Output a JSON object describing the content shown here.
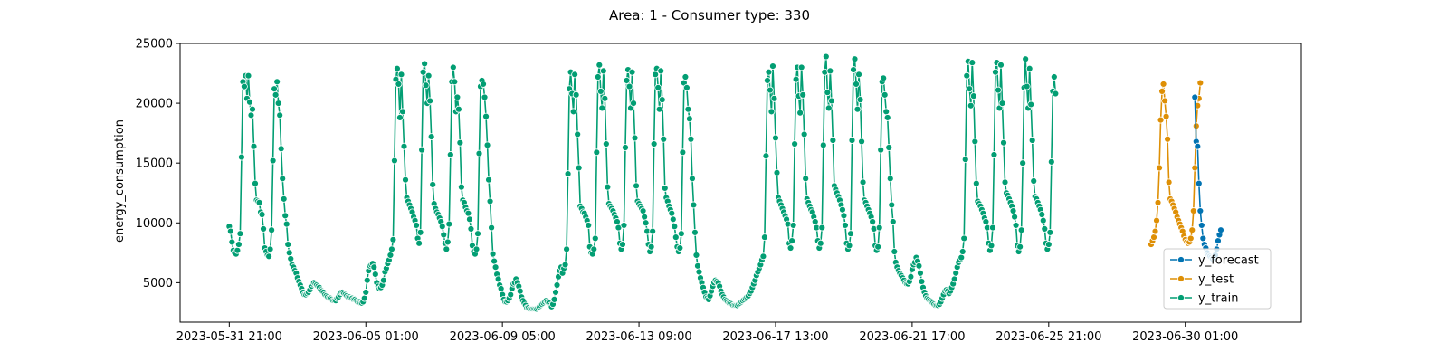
{
  "chart_data": {
    "type": "line",
    "title": "Area: 1 - Consumer type: 330",
    "xlabel": "",
    "ylabel": "energy_consumption",
    "x_unit": "hour",
    "x_ticks": [
      "2023-05-31 21:00",
      "2023-06-05 01:00",
      "2023-06-09 05:00",
      "2023-06-13 09:00",
      "2023-06-17 13:00",
      "2023-06-21 17:00",
      "2023-06-25 21:00",
      "2023-06-30 01:00"
    ],
    "x_range": [
      "2023-05-30 09:00",
      "2023-07-03 14:00"
    ],
    "y_ticks": [
      5000,
      10000,
      15000,
      20000,
      25000
    ],
    "ylim": [
      1700,
      25000
    ],
    "grid": false,
    "legend_position": "lower-right",
    "daily_peaks": [
      22300,
      21800,
      5000,
      4200,
      6600,
      22900,
      23300,
      23000,
      21900,
      5300,
      3500,
      22600,
      23200,
      22800,
      22900,
      22200,
      5200,
      3300,
      4800,
      23100,
      23000,
      23900,
      23700,
      22100,
      7100,
      4400,
      23500,
      23400,
      23700,
      22200,
      21700,
      20500,
      9400
    ],
    "series": [
      {
        "name": "y_forecast",
        "color": "#0173b2",
        "start": "2023-06-30 08:00",
        "values": [
          20500,
          16800,
          16400,
          13300,
          11000,
          9800,
          8700,
          8200,
          7900,
          7500,
          7300,
          7200,
          7100,
          7000,
          7100,
          7300,
          7800,
          8500,
          9000,
          9400
        ]
      },
      {
        "name": "y_test",
        "color": "#de8f05",
        "start": "2023-06-29 00:00",
        "values": [
          8200,
          8500,
          8800,
          9300,
          10200,
          11700,
          14600,
          18600,
          21000,
          21600,
          20200,
          18900,
          17000,
          13400,
          12000,
          11800,
          11500,
          11200,
          10900,
          10500,
          10200,
          9900,
          9600,
          9300,
          8900,
          8600,
          8400,
          8300,
          8400,
          8700,
          9400,
          11000,
          14600,
          18100,
          19800,
          20400,
          21700
        ]
      },
      {
        "name": "y_train",
        "color": "#029e73",
        "start": "2023-05-31 21:00",
        "values": [
          9700,
          9300,
          8400,
          7700,
          7500,
          7400,
          7700,
          8200,
          9100,
          15500,
          21800,
          21400,
          22300,
          20400,
          22300,
          20100,
          19000,
          19500,
          16400,
          13300,
          11900,
          11800,
          11700,
          10900,
          10700,
          9500,
          7900,
          7600,
          7300,
          7200,
          7800,
          9400,
          15200,
          21200,
          20700,
          21800,
          20000,
          19000,
          16200,
          13700,
          12000,
          10600,
          9900,
          8200,
          7500,
          7000,
          6500,
          6300,
          6000,
          5800,
          5400,
          5100,
          4800,
          4500,
          4200,
          4000,
          4000,
          4100,
          4200,
          4400,
          4700,
          4900,
          5000,
          4900,
          4800,
          4700,
          4600,
          4400,
          4300,
          4200,
          4000,
          3900,
          3800,
          3700,
          3700,
          3600,
          3500,
          3500,
          3500,
          3700,
          3800,
          4000,
          4200,
          4200,
          4100,
          4000,
          3900,
          3800,
          3800,
          3700,
          3700,
          3600,
          3600,
          3500,
          3400,
          3400,
          3300,
          3300,
          3400,
          3700,
          4200,
          5200,
          6000,
          6400,
          6500,
          6600,
          6300,
          5700,
          5000,
          4700,
          4500,
          4600,
          4800,
          5200,
          5900,
          6200,
          6600,
          6900,
          7300,
          7800,
          8600,
          15200,
          22000,
          22900,
          21600,
          18800,
          22400,
          19300,
          16400,
          13600,
          12100,
          11800,
          11500,
          11200,
          10900,
          10500,
          10200,
          9800,
          8700,
          8300,
          9200,
          16100,
          22600,
          23300,
          21500,
          20000,
          22300,
          20200,
          17200,
          13200,
          11600,
          11200,
          10900,
          10700,
          10400,
          10100,
          9700,
          9000,
          8300,
          7800,
          8400,
          9900,
          15700,
          21800,
          23000,
          21800,
          19300,
          20500,
          19500,
          16700,
          13000,
          11900,
          11700,
          11300,
          11000,
          10800,
          10300,
          9500,
          8100,
          7600,
          7400,
          7800,
          9100,
          15800,
          21400,
          21900,
          21600,
          20500,
          18900,
          16500,
          13600,
          11800,
          9600,
          7400,
          6800,
          6300,
          5700,
          5300,
          4800,
          4500,
          4000,
          3600,
          3400,
          3400,
          3500,
          3700,
          4000,
          4500,
          4900,
          5000,
          5300,
          5000,
          4700,
          4300,
          3800,
          3500,
          3300,
          3100,
          2900,
          2900,
          2800,
          2800,
          2800,
          2800,
          2800,
          2800,
          2900,
          3000,
          3100,
          3200,
          3300,
          3400,
          3500,
          3400,
          3300,
          3100,
          3000,
          3200,
          3600,
          4200,
          4800,
          5500,
          6000,
          6300,
          5800,
          6200,
          6500,
          7800,
          14100,
          21200,
          22600,
          20800,
          19300,
          22400,
          20700,
          17400,
          14600,
          11400,
          11200,
          10900,
          10800,
          10500,
          10200,
          9800,
          8000,
          7500,
          7400,
          7800,
          8700,
          15900,
          22200,
          23200,
          21000,
          19600,
          22700,
          20400,
          16600,
          13000,
          11600,
          11400,
          11200,
          11000,
          10700,
          10400,
          10100,
          9600,
          8300,
          7800,
          8200,
          9800,
          16300,
          21900,
          22800,
          21400,
          19600,
          22600,
          20000,
          17100,
          13100,
          11800,
          11600,
          11400,
          11200,
          11000,
          10500,
          10000,
          9300,
          8200,
          7600,
          8000,
          9300,
          16600,
          22400,
          22900,
          21300,
          19500,
          22700,
          20300,
          17000,
          12900,
          12100,
          11800,
          11400,
          11100,
          10800,
          10300,
          9700,
          8800,
          8000,
          7600,
          7900,
          9100,
          15900,
          21700,
          22200,
          21300,
          19500,
          18700,
          17000,
          13700,
          11500,
          9200,
          7300,
          6400,
          5900,
          5400,
          5000,
          4600,
          4200,
          3800,
          3700,
          3600,
          3900,
          4300,
          4700,
          5000,
          5200,
          5100,
          5000,
          4700,
          4300,
          4000,
          3800,
          3600,
          3500,
          3400,
          3300,
          3300,
          3200,
          3100,
          3100,
          3100,
          3100,
          3200,
          3300,
          3400,
          3500,
          3600,
          3700,
          3800,
          3900,
          4100,
          4300,
          4600,
          4900,
          5200,
          5600,
          5900,
          6200,
          6500,
          6900,
          7200,
          8800,
          15600,
          21900,
          22600,
          21100,
          19300,
          23100,
          20400,
          17100,
          14200,
          12100,
          11800,
          11500,
          11200,
          10900,
          10600,
          10300,
          9900,
          8300,
          7900,
          8500,
          9800,
          16600,
          22000,
          23000,
          20600,
          19200,
          23000,
          20700,
          17400,
          13700,
          12000,
          11700,
          11400,
          11100,
          10900,
          10500,
          10100,
          9600,
          8500,
          7900,
          8300,
          9600,
          16500,
          22600,
          23900,
          20900,
          19600,
          22700,
          20200,
          16900,
          13100,
          12800,
          12500,
          12200,
          11900,
          11500,
          11100,
          10600,
          9800,
          8300,
          7800,
          8100,
          9100,
          16900,
          22800,
          23700,
          21600,
          19500,
          22400,
          20300,
          16800,
          13400,
          11900,
          11700,
          11400,
          11100,
          10800,
          10500,
          10100,
          9500,
          8100,
          7700,
          8000,
          9600,
          16100,
          21800,
          22100,
          20700,
          19300,
          18800,
          16300,
          13700,
          11500,
          10100,
          7600,
          6700,
          6300,
          6000,
          5800,
          5600,
          5400,
          5200,
          5000,
          4900,
          4900,
          5100,
          5500,
          6100,
          6500,
          6700,
          7100,
          6800,
          6400,
          5800,
          5100,
          4600,
          4200,
          3900,
          3700,
          3600,
          3500,
          3400,
          3300,
          3200,
          3100,
          3100,
          3100,
          3200,
          3400,
          3700,
          4000,
          4300,
          4400,
          4300,
          4100,
          4300,
          4600,
          4900,
          5300,
          5800,
          6300,
          6700,
          6900,
          7100,
          7600,
          8700,
          15300,
          22300,
          23500,
          21200,
          19800,
          23400,
          20600,
          16800,
          13300,
          11800,
          11600,
          11400,
          11100,
          10800,
          10400,
          10100,
          9600,
          8300,
          7700,
          8100,
          9600,
          15700,
          22600,
          23400,
          21100,
          19600,
          23200,
          20000,
          16700,
          13400,
          12500,
          12300,
          12000,
          11700,
          11400,
          11000,
          10500,
          9800,
          8100,
          7600,
          8000,
          9400,
          15000,
          21300,
          23700,
          21400,
          19600,
          22900,
          19900,
          16900,
          13500,
          12200,
          12000,
          11700,
          11400,
          11100,
          10700,
          10200,
          9500,
          8300,
          7800,
          8200,
          9200,
          15100,
          21000,
          22200,
          20800
        ]
      }
    ]
  }
}
